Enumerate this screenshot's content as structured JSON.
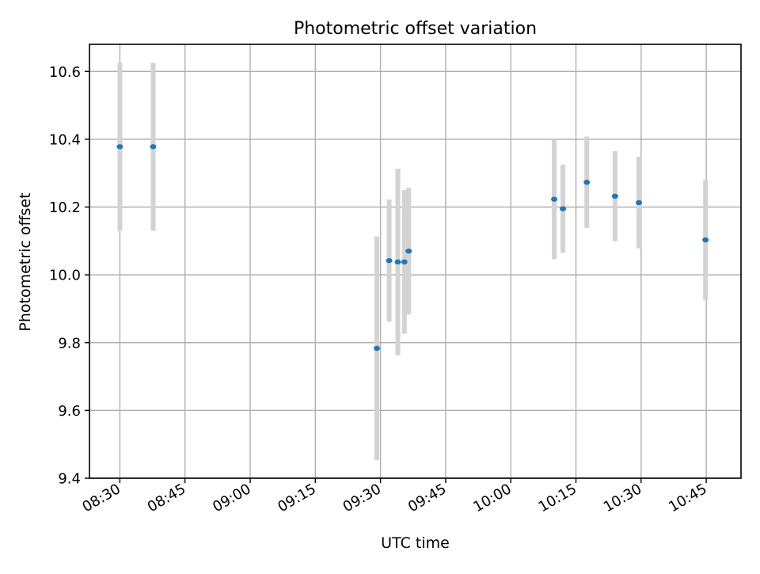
{
  "chart_data": {
    "type": "scatter",
    "title": "Photometric offset variation",
    "xlabel": "UTC time",
    "ylabel": "Photometric offset",
    "grid": true,
    "xlim": [
      "08:23",
      "10:53"
    ],
    "ylim": [
      9.4,
      10.68
    ],
    "x_ticks": [
      "08:30",
      "08:45",
      "09:00",
      "09:15",
      "09:30",
      "09:45",
      "10:00",
      "10:15",
      "10:30",
      "10:45"
    ],
    "y_ticks": [
      "9.4",
      "9.6",
      "9.8",
      "10.0",
      "10.2",
      "10.4",
      "10.6"
    ],
    "series": [
      {
        "marker_color": "#1f77b4",
        "errorbar_color": "#d3d3d3",
        "points": [
          {
            "x": "08:30",
            "y": 10.378,
            "yerr": 0.248
          },
          {
            "x": "08:37:40",
            "y": 10.378,
            "yerr": 0.248
          },
          {
            "x": "09:29:10",
            "y": 9.783,
            "yerr": 0.33
          },
          {
            "x": "09:32",
            "y": 10.042,
            "yerr": 0.18
          },
          {
            "x": "09:34",
            "y": 10.038,
            "yerr": 0.275
          },
          {
            "x": "09:35:30",
            "y": 10.038,
            "yerr": 0.212
          },
          {
            "x": "09:36:30",
            "y": 10.07,
            "yerr": 0.187
          },
          {
            "x": "10:10",
            "y": 10.223,
            "yerr": 0.177
          },
          {
            "x": "10:12",
            "y": 10.195,
            "yerr": 0.13
          },
          {
            "x": "10:17:30",
            "y": 10.273,
            "yerr": 0.135
          },
          {
            "x": "10:24",
            "y": 10.232,
            "yerr": 0.133
          },
          {
            "x": "10:29:30",
            "y": 10.213,
            "yerr": 0.135
          },
          {
            "x": "10:44:50",
            "y": 10.103,
            "yerr": 0.177
          }
        ]
      }
    ]
  }
}
